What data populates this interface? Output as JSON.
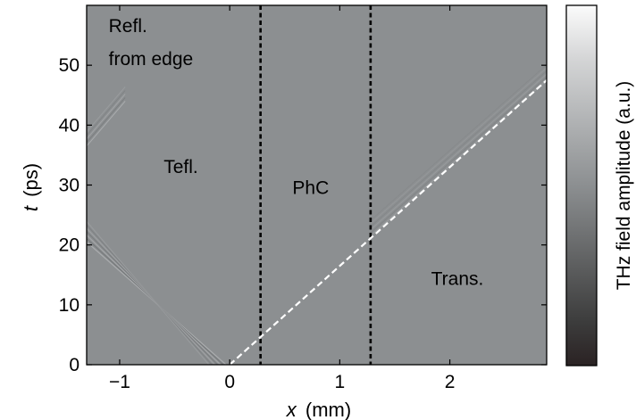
{
  "chart_data": {
    "type": "heatmap",
    "xlabel_var": "x",
    "xlabel_unit": "(mm)",
    "ylabel_var": "t",
    "ylabel_unit": "(ps)",
    "xlim": [
      -1.3,
      2.88
    ],
    "ylim": [
      0,
      60
    ],
    "xticks": [
      -1,
      0,
      1,
      2
    ],
    "xtick_labels": [
      "−1",
      "0",
      "1",
      "2"
    ],
    "yticks": [
      0,
      10,
      20,
      30,
      40,
      50
    ],
    "ytick_labels": [
      "0",
      "10",
      "20",
      "30",
      "40",
      "50"
    ],
    "colorbar_label": "THz field amplitude (a.u.)",
    "colormap": "gray",
    "region_boundaries_x": [
      0.28,
      1.28
    ],
    "dashed_line": {
      "x": [
        0,
        2.88
      ],
      "t": [
        0,
        47.5
      ],
      "color": "#ffffff"
    },
    "annotations": [
      {
        "text": "Refl.",
        "x": -1.1,
        "t": 55.5
      },
      {
        "text": "from edge",
        "x": -1.1,
        "t": 50.0
      },
      {
        "text": "Tefl.",
        "x": -0.6,
        "t": 32.0
      },
      {
        "text": "PhC",
        "x": 0.57,
        "t": 28.5
      },
      {
        "text": "Trans.",
        "x": 1.83,
        "t": 13.3
      }
    ],
    "background_color": "#8c8f91"
  }
}
